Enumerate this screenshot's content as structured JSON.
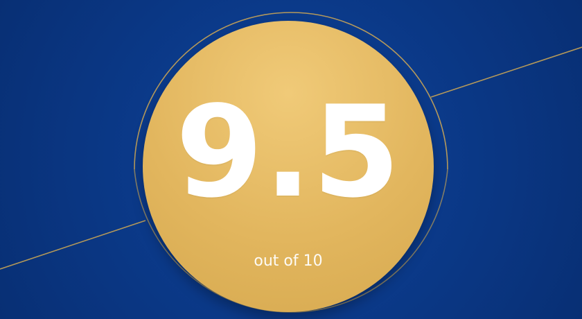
{
  "rating_badge": {
    "score": "9.5",
    "scale_text": "out of 10"
  },
  "colors": {
    "background": "#0b3a8a",
    "badge_gold": "#e2b65e",
    "accent_line": "#c8a455",
    "text": "#ffffff"
  }
}
